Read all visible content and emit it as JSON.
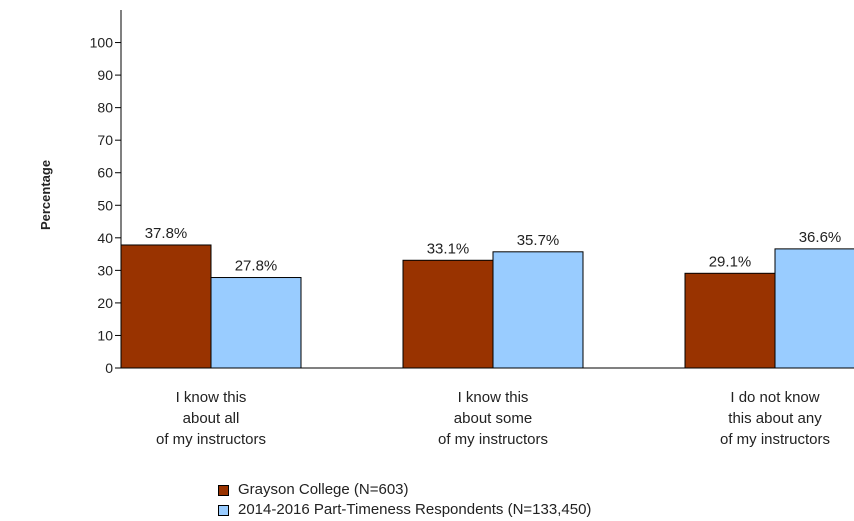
{
  "chart_data": {
    "type": "bar",
    "ylabel": "Percentage",
    "ylim": [
      0,
      100
    ],
    "yticks": [
      0,
      10,
      20,
      30,
      40,
      50,
      60,
      70,
      80,
      90,
      100
    ],
    "categories": [
      [
        "I know this",
        "about all",
        "of my instructors"
      ],
      [
        "I know this",
        "about some",
        "of my instructors"
      ],
      [
        "I do not know",
        "this about any",
        "of my instructors"
      ]
    ],
    "series": [
      {
        "name": "Grayson College (N=603)",
        "color": "#993300",
        "values": [
          37.8,
          33.1,
          29.1
        ],
        "labels": [
          "37.8%",
          "33.1%",
          "29.1%"
        ]
      },
      {
        "name": "2014-2016 Part-Timeness Respondents (N=133,450)",
        "color": "#99ccff",
        "values": [
          27.8,
          35.7,
          36.6
        ],
        "labels": [
          "27.8%",
          "35.7%",
          "36.6%"
        ]
      }
    ],
    "legend_position": "bottom"
  }
}
